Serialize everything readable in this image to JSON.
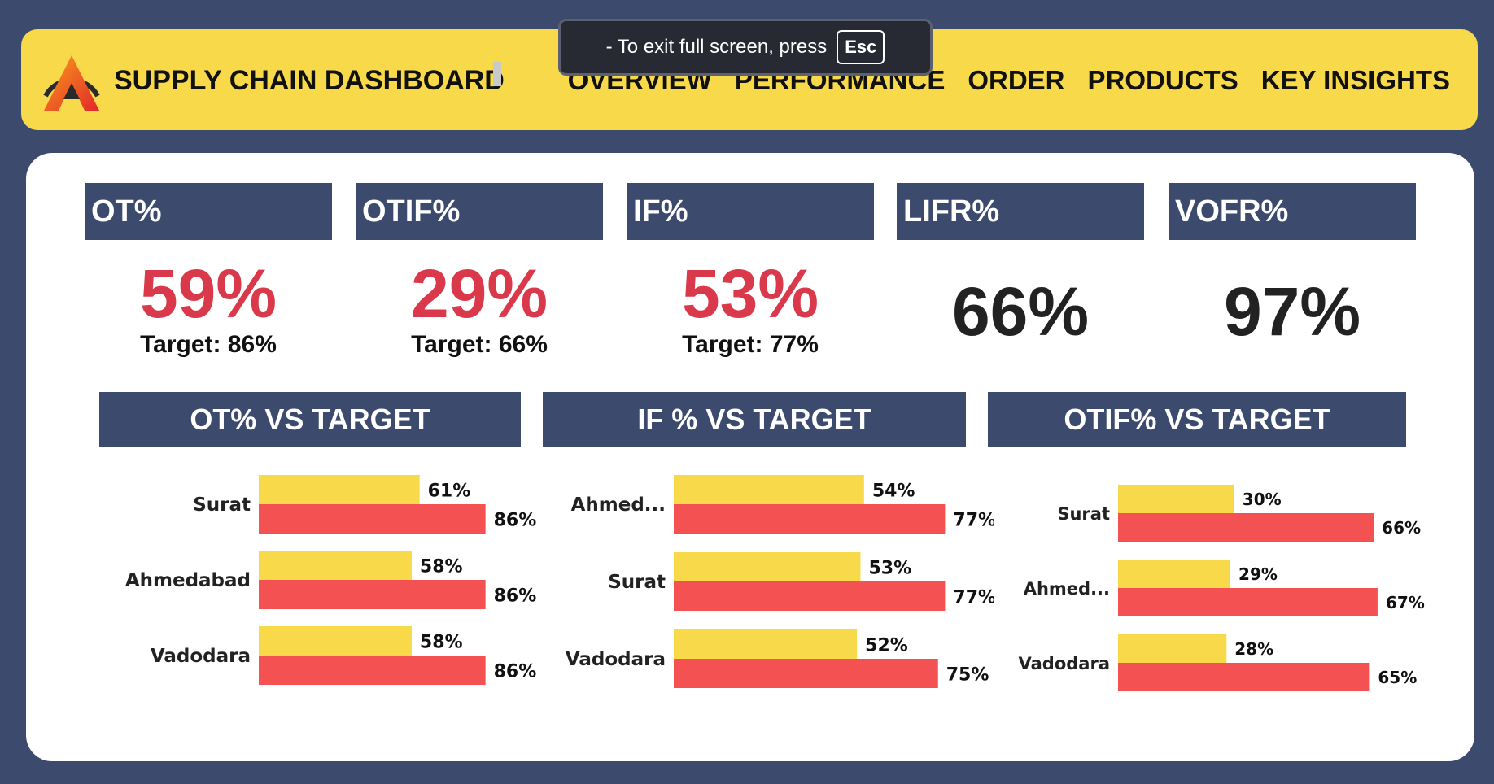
{
  "header": {
    "title": "SUPPLY CHAIN DASHBOARD",
    "nav": [
      "OVERVIEW",
      "PERFORMANCE",
      "ORDER",
      "PRODUCTS",
      "KEY INSIGHTS"
    ]
  },
  "fullscreen_notice": {
    "text": "-  To exit full screen, press",
    "key": "Esc"
  },
  "kpis": [
    {
      "label": "OT%",
      "value": "59%",
      "target": "Target: 86%"
    },
    {
      "label": "OTIF%",
      "value": "29%",
      "target": "Target: 66%"
    },
    {
      "label": "IF%",
      "value": "53%",
      "target": "Target: 77%"
    },
    {
      "label": "LIFR%",
      "value": "66%"
    },
    {
      "label": "VOFR%",
      "value": "97%"
    }
  ],
  "colors": {
    "actual": "#f8d949",
    "target": "#f45252",
    "navy": "#3c4a6e",
    "bad": "#d9394a"
  },
  "chart_data": [
    {
      "type": "bar",
      "title": "OT% VS TARGET",
      "categories": [
        "Surat",
        "Ahmedabad",
        "Vadodara"
      ],
      "series": [
        {
          "values": [
            61,
            58,
            58
          ]
        },
        {
          "values": [
            86,
            86,
            86
          ]
        }
      ],
      "value_labels": [
        [
          "61%",
          "58%",
          "58%"
        ],
        [
          "86%",
          "86%",
          "86%"
        ]
      ]
    },
    {
      "type": "bar",
      "title": "IF % VS TARGET",
      "categories": [
        "Ahmed...",
        "Surat",
        "Vadodara"
      ],
      "series": [
        {
          "values": [
            54,
            53,
            52
          ]
        },
        {
          "values": [
            77,
            77,
            75
          ]
        }
      ],
      "value_labels": [
        [
          "54%",
          "53%",
          "52%"
        ],
        [
          "77%",
          "77%",
          "75%"
        ]
      ]
    },
    {
      "type": "bar",
      "title": "OTIF% VS TARGET",
      "categories": [
        "Surat",
        "Ahmed...",
        "Vadodara"
      ],
      "series": [
        {
          "values": [
            30,
            29,
            28
          ]
        },
        {
          "values": [
            66,
            67,
            65
          ]
        }
      ],
      "value_labels": [
        [
          "30%",
          "29%",
          "28%"
        ],
        [
          "66%",
          "67%",
          "65%"
        ]
      ]
    }
  ]
}
